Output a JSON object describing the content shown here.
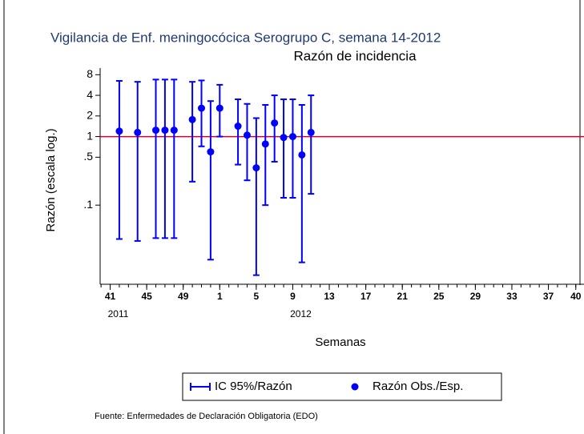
{
  "chart_data": {
    "type": "errorbar",
    "title": "Vigilancia de Enf. meningocócica Serogrupo C, semana 14-2012",
    "subtitle": "Razón de incidencia",
    "ylabel": "Razón (escala log.)",
    "xlabel": "Semanas",
    "source": "Fuente: Enfermedades de Declaración Obligatoria (EDO)",
    "x": [
      42,
      44,
      46,
      47,
      48,
      50,
      51,
      52,
      53,
      55,
      56,
      57,
      58,
      59,
      60,
      61,
      62,
      63
    ],
    "series": [
      {
        "name": "IC 95%/Razón",
        "color": "#0000ff",
        "lower": [
          0.032,
          0.03,
          0.033,
          0.033,
          0.033,
          0.22,
          0.72,
          0.016,
          1.0,
          0.39,
          0.23,
          0.0095,
          0.1,
          0.43,
          0.128,
          0.128,
          0.0146,
          0.146
        ],
        "upper": [
          6.5,
          6.3,
          6.8,
          6.8,
          6.8,
          6.3,
          6.6,
          3.3,
          5.7,
          3.5,
          3.0,
          1.86,
          2.9,
          4.0,
          3.5,
          3.5,
          2.9,
          4.0
        ]
      },
      {
        "name": "Razón Obs./Esp.",
        "color": "#0000ff",
        "values": [
          1.2,
          1.15,
          1.24,
          1.24,
          1.24,
          1.77,
          2.6,
          0.6,
          2.6,
          1.42,
          1.05,
          0.35,
          0.78,
          1.58,
          0.97,
          1.0,
          0.54,
          1.15
        ]
      }
    ],
    "reference_line": {
      "value": 1,
      "color": "#cc0033"
    },
    "ylog": true,
    "ylim": [
      0.007,
      10
    ],
    "yticks": [
      8,
      4,
      2,
      1,
      {
        "value": 0.5,
        "label": ".5"
      },
      {
        "value": 0.1,
        "label": ".1"
      }
    ],
    "xlim": [
      39.9,
      92.9
    ],
    "xticks": [
      41,
      45,
      49,
      {
        "value": 53,
        "label": "1"
      },
      {
        "value": 57,
        "label": "5"
      },
      {
        "value": 61,
        "label": "9"
      },
      {
        "value": 65,
        "label": "13"
      },
      {
        "value": 69,
        "label": "17"
      },
      {
        "value": 73,
        "label": "21"
      },
      {
        "value": 77,
        "label": "25"
      },
      {
        "value": 81,
        "label": "29"
      },
      {
        "value": 85,
        "label": "33"
      },
      {
        "value": 89,
        "label": "37"
      },
      {
        "value": 92,
        "label": "40"
      }
    ],
    "year_labels": [
      {
        "value": 41,
        "label": "2011"
      },
      {
        "value": 61,
        "label": "2012"
      }
    ],
    "legend": "bottom"
  }
}
